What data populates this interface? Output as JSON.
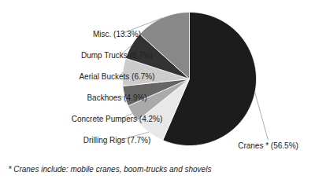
{
  "chart_data": {
    "type": "pie",
    "categories": [
      "Cranes * (56.5%)",
      "Drilling Rigs (7.7%)",
      "Concrete Pumpers (4.2%)",
      "Backhoes (4.9%)",
      "Aerial Buckets (6.7%)",
      "Dump Trucks (6.7%)",
      "Misc. (13.3%)"
    ],
    "values": [
      56.5,
      7.7,
      4.2,
      4.9,
      6.7,
      6.7,
      13.3
    ],
    "colors": [
      "#1c1c1c",
      "#e8e8e8",
      "#aaaaaa",
      "#666666",
      "#cccccc",
      "#333333",
      "#888888"
    ],
    "annotations": [
      "* Cranes include: mobile cranes, boom-trucks and shovels"
    ]
  }
}
